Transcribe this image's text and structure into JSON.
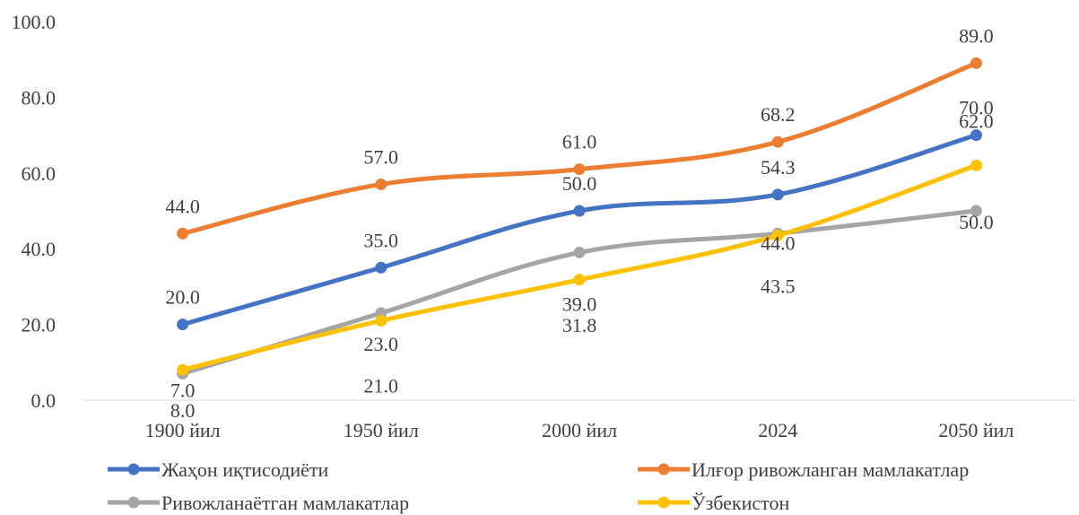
{
  "chart_data": {
    "type": "line",
    "title": "",
    "xlabel": "",
    "ylabel": "",
    "categories": [
      "1900 йил",
      "1950 йил",
      "2000 йил",
      "2024",
      "2050 йил"
    ],
    "ylim": [
      0,
      100
    ],
    "yticks": [
      "0.0",
      "20.0",
      "40.0",
      "60.0",
      "80.0",
      "100.0"
    ],
    "grid": false,
    "legend_position": "bottom",
    "series": [
      {
        "name": "Жаҳон иқтисодиёти",
        "color": "#4472c4",
        "values": [
          20.0,
          35.0,
          50.0,
          54.3,
          70.0
        ],
        "labels": [
          "20.0",
          "35.0",
          "50.0",
          "54.3",
          "70.0"
        ]
      },
      {
        "name": "Илғор ривожланган мамлакатлар",
        "color": "#ed7d31",
        "values": [
          44.0,
          57.0,
          61.0,
          68.2,
          89.0
        ],
        "labels": [
          "44.0",
          "57.0",
          "61.0",
          "68.2",
          "89.0"
        ]
      },
      {
        "name": "Ривожланаётган мамлакатлар",
        "color": "#a5a5a5",
        "values": [
          7.0,
          23.0,
          39.0,
          44.0,
          50.0
        ],
        "labels": [
          "7.0",
          "23.0",
          "39.0",
          "44.0",
          "50.0"
        ]
      },
      {
        "name": "Ўзбекистон",
        "color": "#ffc000",
        "values": [
          8.0,
          21.0,
          31.8,
          43.5,
          62.0
        ],
        "labels": [
          "8.0",
          "21.0",
          "31.8",
          "43.5",
          "62.0"
        ]
      }
    ]
  }
}
